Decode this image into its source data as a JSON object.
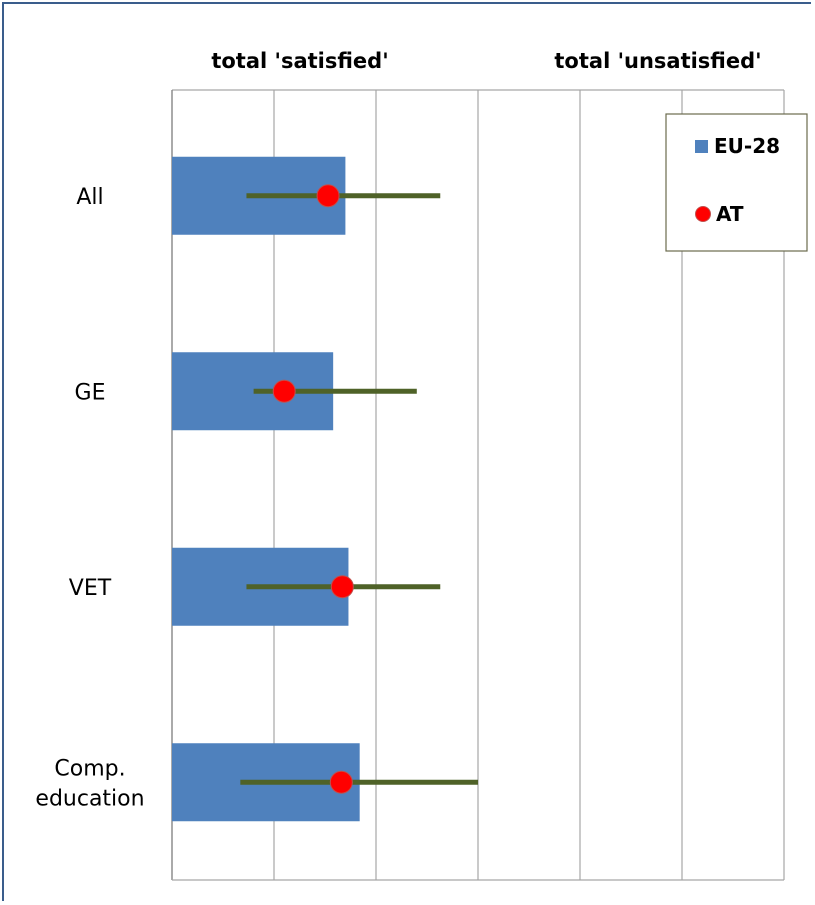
{
  "chart_data": {
    "type": "bar",
    "orientation": "horizontal",
    "column_headers": [
      "total 'satisfied'",
      "total 'unsatisfied'"
    ],
    "categories": [
      {
        "label_lines": [
          "All"
        ]
      },
      {
        "label_lines": [
          "GE"
        ]
      },
      {
        "label_lines": [
          "VET"
        ]
      },
      {
        "label_lines": [
          "Comp.",
          "education"
        ]
      }
    ],
    "xlim": [
      0,
      6
    ],
    "grid": true,
    "series": [
      {
        "name": "EU-28",
        "kind": "bar",
        "color": "#4f81bd",
        "values": [
          1.7,
          1.58,
          1.73,
          1.84
        ]
      },
      {
        "name": "AT",
        "kind": "point",
        "color": "#ff0000",
        "values": [
          1.53,
          1.1,
          1.67,
          1.66
        ]
      }
    ],
    "ranges": {
      "color": "#4f6228",
      "low": [
        0.73,
        0.8,
        0.73,
        0.67
      ],
      "high": [
        2.63,
        2.4,
        2.63,
        3.0
      ]
    },
    "legend": {
      "placement": "top-right",
      "entries": [
        "EU-28",
        "AT"
      ]
    }
  }
}
